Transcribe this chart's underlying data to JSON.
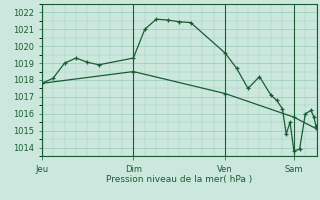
{
  "bg_color": "#cce8de",
  "grid_color": "#99ccbb",
  "line_color": "#1a5c32",
  "marker_color": "#1a5c32",
  "xlabel": "Pression niveau de la mer( hPa )",
  "ylim": [
    1013.5,
    1022.5
  ],
  "yticks": [
    1014,
    1015,
    1016,
    1017,
    1018,
    1019,
    1020,
    1021,
    1022
  ],
  "day_labels": [
    "Jeu",
    "Dim",
    "Ven",
    "Sam"
  ],
  "day_positions": [
    0,
    96,
    192,
    264
  ],
  "total_steps": 288,
  "series1": [
    [
      0,
      1017.8
    ],
    [
      12,
      1018.1
    ],
    [
      24,
      1019.0
    ],
    [
      36,
      1019.3
    ],
    [
      48,
      1019.05
    ],
    [
      60,
      1018.9
    ],
    [
      96,
      1019.3
    ],
    [
      108,
      1021.0
    ],
    [
      120,
      1021.6
    ],
    [
      132,
      1021.55
    ],
    [
      144,
      1021.45
    ],
    [
      156,
      1021.4
    ],
    [
      192,
      1019.6
    ],
    [
      204,
      1018.7
    ],
    [
      216,
      1017.5
    ],
    [
      228,
      1018.2
    ],
    [
      240,
      1017.1
    ],
    [
      246,
      1016.8
    ],
    [
      252,
      1016.3
    ],
    [
      256,
      1014.8
    ],
    [
      260,
      1015.5
    ],
    [
      264,
      1013.8
    ],
    [
      270,
      1013.9
    ],
    [
      276,
      1016.0
    ],
    [
      282,
      1016.2
    ],
    [
      285,
      1015.8
    ],
    [
      287,
      1015.3
    ],
    [
      288,
      1015.2
    ]
  ],
  "series2": [
    [
      0,
      1017.8
    ],
    [
      96,
      1018.5
    ],
    [
      192,
      1017.2
    ],
    [
      264,
      1015.8
    ],
    [
      288,
      1015.1
    ]
  ]
}
